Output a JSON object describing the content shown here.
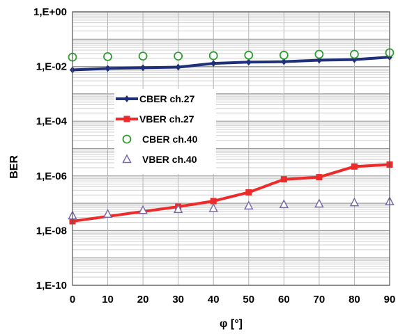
{
  "chart_data": {
    "type": "line",
    "title": "",
    "xlabel": "φ [°]",
    "ylabel": "BER",
    "y_scale": "log",
    "xlim": [
      0,
      90
    ],
    "ylim": [
      1e-10,
      1
    ],
    "grid": true,
    "legend_position": "left-middle",
    "x_tick_labels": [
      "0",
      "10",
      "20",
      "30",
      "40",
      "50",
      "60",
      "70",
      "80",
      "90"
    ],
    "y_tick_labels": [
      "1,E+00",
      "1,E-02",
      "1,E-04",
      "1,E-06",
      "1,E-08",
      "1,E-10"
    ],
    "series": [
      {
        "name": "CBER ch.27",
        "color": "#1f2f7a",
        "marker": "diamond-filled",
        "x": [
          0,
          10,
          20,
          30,
          40,
          50,
          60,
          70,
          80,
          90
        ],
        "y": [
          0.0075,
          0.0085,
          0.009,
          0.0095,
          0.013,
          0.0145,
          0.015,
          0.017,
          0.018,
          0.022
        ]
      },
      {
        "name": "VBER ch.27",
        "color": "#ee2b2b",
        "marker": "square-filled",
        "x": [
          0,
          30,
          40,
          50,
          60,
          70,
          80,
          90
        ],
        "y": [
          2.2e-08,
          7.5e-08,
          1.2e-07,
          2.5e-07,
          7.5e-07,
          9e-07,
          2.2e-06,
          2.6e-06
        ]
      },
      {
        "name": "CBER ch.40",
        "color": "#2e9e2e",
        "marker": "circle-open",
        "x": [
          0,
          10,
          20,
          30,
          40,
          50,
          60,
          70,
          80,
          90
        ],
        "y": [
          0.022,
          0.023,
          0.024,
          0.024,
          0.025,
          0.026,
          0.026,
          0.028,
          0.028,
          0.032
        ]
      },
      {
        "name": "VBER ch.40",
        "color": "#7a6aa8",
        "marker": "triangle-open",
        "x": [
          0,
          10,
          20,
          30,
          40,
          50,
          60,
          70,
          80,
          90
        ],
        "y": [
          3.5e-08,
          4e-08,
          5.5e-08,
          6e-08,
          6.5e-08,
          8e-08,
          9e-08,
          9.5e-08,
          1.05e-07,
          1.15e-07
        ]
      }
    ]
  }
}
